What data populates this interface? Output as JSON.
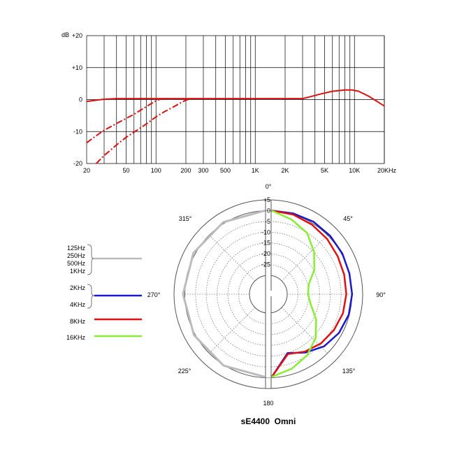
{
  "chart_data": [
    {
      "type": "line",
      "title": "",
      "xlabel": "",
      "ylabel": "dB",
      "x_scale": "log",
      "xlim": [
        20,
        20000
      ],
      "ylim": [
        -20,
        20
      ],
      "grid": true,
      "x_tick_labels": [
        "20",
        "50",
        "100",
        "200",
        "300",
        "500",
        "1K",
        "2K",
        "5K",
        "10K",
        "20KHz"
      ],
      "x_tick_values": [
        20,
        50,
        100,
        200,
        300,
        500,
        1000,
        2000,
        5000,
        10000,
        20000
      ],
      "y_tick_labels": [
        "+20",
        "+10",
        "0",
        "-10",
        "-20"
      ],
      "y_tick_values": [
        20,
        10,
        0,
        -10,
        -20
      ],
      "y_unit_label": "dB",
      "series": [
        {
          "style": "solid",
          "color": "#dd1111",
          "x": [
            20,
            25,
            30,
            40,
            60,
            100,
            1000,
            3000,
            3500,
            4500,
            6000,
            8000,
            9500,
            11000,
            14000,
            20000
          ],
          "y": [
            -0.6,
            -0.2,
            0.1,
            0.3,
            0.3,
            0.3,
            0.3,
            0.3,
            0.8,
            1.7,
            2.6,
            3.0,
            3.0,
            2.6,
            1.0,
            -2.0
          ]
        },
        {
          "style": "dashed",
          "color": "#dd1111",
          "x": [
            20,
            25,
            30,
            40,
            50,
            60,
            70,
            80,
            90,
            100,
            110,
            120,
            130
          ],
          "y": [
            -13.5,
            -11.3,
            -9.6,
            -7.5,
            -5.9,
            -4.6,
            -3.3,
            -2.2,
            -1.2,
            -0.4,
            0.1,
            0.3,
            0.3
          ]
        },
        {
          "style": "dashed",
          "color": "#dd1111",
          "x": [
            25,
            30,
            40,
            50,
            60,
            80,
            100,
            120,
            150,
            180,
            200,
            220,
            250
          ],
          "y": [
            -20.5,
            -17.5,
            -14.2,
            -11.8,
            -10.2,
            -7.6,
            -5.4,
            -3.9,
            -2.3,
            -0.9,
            -0.2,
            0.2,
            0.3
          ]
        }
      ]
    },
    {
      "type": "polar",
      "title": "sE4400  Omni",
      "r_tick_labels": [
        "+5",
        "0",
        "-5",
        "-10",
        "-15",
        "-20",
        "-25"
      ],
      "r_tick_values": [
        5,
        0,
        -5,
        -10,
        -15,
        -20,
        -25
      ],
      "r_range": [
        -30,
        5
      ],
      "angle_labels": [
        "0°",
        "45°",
        "90°",
        "135°",
        "180",
        "225°",
        "270°",
        "315°"
      ],
      "angle_values": [
        0,
        45,
        90,
        135,
        180,
        225,
        270,
        315
      ],
      "legend": [
        {
          "labels": [
            "125Hz",
            "250Hz",
            "500Hz",
            "1KHz"
          ],
          "color": "#bbbbbb"
        },
        {
          "labels": [
            "2KHz",
            "4KHz"
          ],
          "color": "#1a1acc"
        },
        {
          "labels": [
            "8KHz"
          ],
          "color": "#dd1111"
        },
        {
          "labels": [
            "16KHz"
          ],
          "color": "#88ee33"
        }
      ],
      "series": [
        {
          "name": "125Hz / 250Hz / 500Hz / 1KHz",
          "color": "#bbbbbb",
          "side": "left",
          "angles": [
            0,
            30,
            60,
            90,
            120,
            150,
            180
          ],
          "db": [
            0,
            -0.2,
            -0.5,
            -0.8,
            -0.8,
            -0.5,
            -0.4
          ]
        },
        {
          "name": "2KHz / 4KHz",
          "color": "#1a1acc",
          "side": "right",
          "angles": [
            0,
            15,
            30,
            45,
            60,
            75,
            90,
            105,
            120,
            135,
            150,
            165,
            180
          ],
          "db": [
            0,
            0,
            0,
            -0.5,
            -1.0,
            -1.5,
            -1.5,
            -1.8,
            -2.8,
            -4.5,
            -7.5,
            -10.5,
            -0.4
          ]
        },
        {
          "name": "8KHz",
          "color": "#dd1111",
          "side": "right",
          "angles": [
            0,
            15,
            30,
            45,
            60,
            75,
            90,
            105,
            120,
            135,
            150,
            165,
            180
          ],
          "db": [
            0,
            -0.5,
            -1.5,
            -2.5,
            -3.5,
            -4.0,
            -4.2,
            -4.6,
            -5.5,
            -6.5,
            -8.0,
            -10.0,
            -0.4
          ]
        },
        {
          "name": "16KHz",
          "color": "#88ee33",
          "side": "right",
          "angles": [
            0,
            15,
            30,
            45,
            60,
            75,
            90,
            105,
            120,
            135,
            150,
            165,
            180
          ],
          "db": [
            0,
            -3,
            -6,
            -11,
            -16,
            -21,
            -22,
            -20,
            -15,
            -10,
            -6,
            -3,
            -0.4
          ]
        }
      ]
    }
  ]
}
